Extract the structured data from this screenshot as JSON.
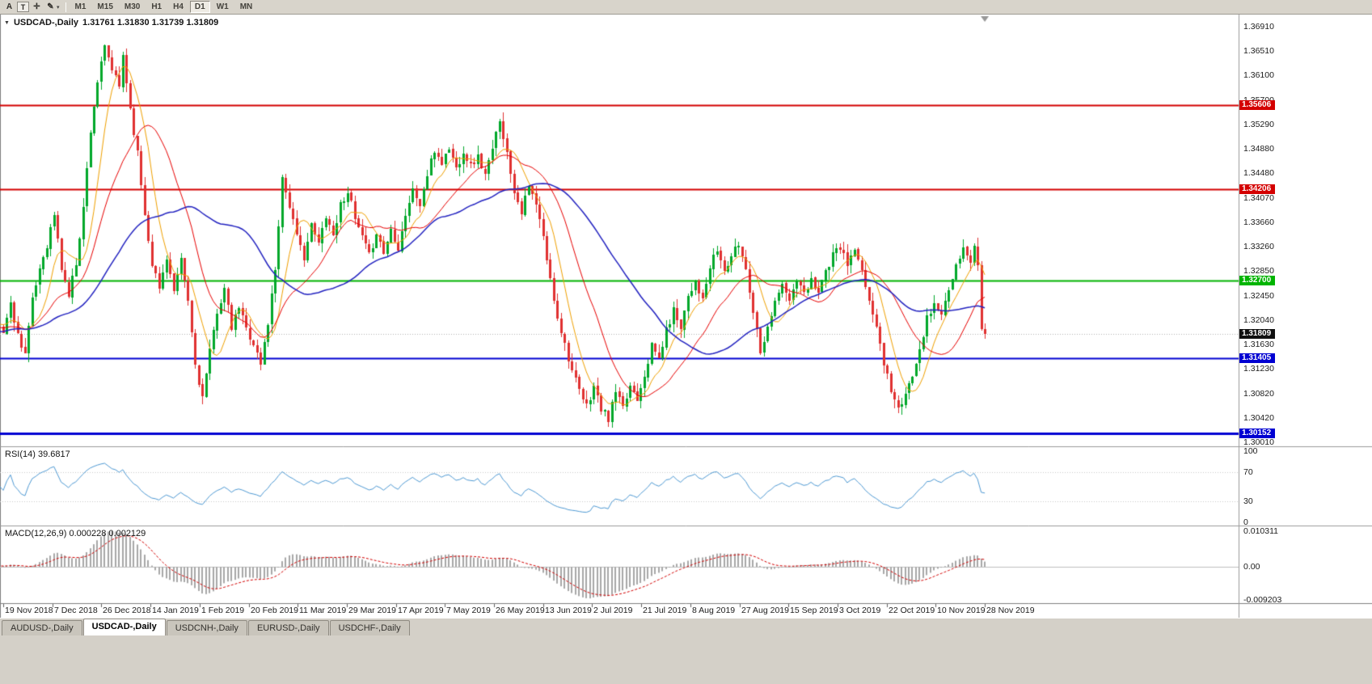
{
  "toolbar": {
    "icons": {
      "a": "A",
      "frame": "T",
      "crosshair": "✛",
      "pencil": "✎",
      "caret": "▾"
    },
    "timeframes": [
      "M1",
      "M15",
      "M30",
      "H1",
      "H4",
      "D1",
      "W1",
      "MN"
    ],
    "active_timeframe": "D1"
  },
  "chart": {
    "collapse_icon": "▼",
    "title": "USDCAD-,Daily",
    "ohlc": "1.31761 1.31830 1.31739 1.31809",
    "price_axis": [
      "1.36910",
      "1.36510",
      "1.36100",
      "1.35700",
      "1.35290",
      "1.34880",
      "1.34480",
      "1.34070",
      "1.33660",
      "1.33260",
      "1.32850",
      "1.32450",
      "1.32040",
      "1.31630",
      "1.31230",
      "1.30820",
      "1.30420",
      "1.30010"
    ],
    "hlines": [
      {
        "price": 1.35606,
        "label": "1.35606",
        "color": "#d40000",
        "width": 2
      },
      {
        "price": 1.34206,
        "label": "1.34206",
        "color": "#d40000",
        "width": 2
      },
      {
        "price": 1.327,
        "label": "1.32700",
        "color": "#00b400",
        "width": 2
      },
      {
        "price": 1.31405,
        "label": "1.31405",
        "color": "#0000d2",
        "width": 2
      },
      {
        "price": 1.30152,
        "label": "1.30152",
        "color": "#0000d2",
        "width": 3
      }
    ],
    "current_price": {
      "label": "1.31809",
      "value": 1.31809,
      "color": "#101010"
    },
    "dates": [
      "19 Nov 2018",
      "7 Dec 2018",
      "26 Dec 2018",
      "14 Jan 2019",
      "1 Feb 2019",
      "20 Feb 2019",
      "11 Mar 2019",
      "29 Mar 2019",
      "17 Apr 2019",
      "7 May 2019",
      "26 May 2019",
      "13 Jun 2019",
      "2 Jul 2019",
      "21 Jul 2019",
      "8 Aug 2019",
      "27 Aug 2019",
      "15 Sep 2019",
      "3 Oct 2019",
      "22 Oct 2019",
      "10 Nov 2019",
      "28 Nov 2019"
    ]
  },
  "rsi": {
    "label": "RSI(14) 39.6817",
    "axis": [
      "100",
      "70",
      "30",
      "0"
    ],
    "levels": [
      70,
      30
    ]
  },
  "macd": {
    "label": "MACD(12,26,9) 0.000228 0.002129",
    "axis": [
      "0.010311",
      "0.00",
      "-0.009203"
    ]
  },
  "tabs": [
    {
      "label": "AUDUSD-,Daily",
      "active": false
    },
    {
      "label": "USDCAD-,Daily",
      "active": true
    },
    {
      "label": "USDCNH-,Daily",
      "active": false
    },
    {
      "label": "EURUSD-,Daily",
      "active": false
    },
    {
      "label": "USDCHF-,Daily",
      "active": false
    }
  ],
  "chart_data": {
    "type": "candlestick",
    "symbol": "USDCAD",
    "timeframe": "Daily",
    "seed": 11,
    "candle_count": 272,
    "warmup_count": 50,
    "price_range": [
      1.2995,
      1.3705
    ],
    "warmup_waypoints": [
      [
        -50,
        1.319
      ],
      [
        -42,
        1.315
      ],
      [
        -34,
        1.3215
      ],
      [
        -26,
        1.316
      ],
      [
        -18,
        1.3205
      ],
      [
        -10,
        1.317
      ],
      [
        -4,
        1.321
      ]
    ],
    "price_waypoints": [
      [
        0,
        1.3185
      ],
      [
        2,
        1.323
      ],
      [
        4,
        1.318
      ],
      [
        6,
        1.315
      ],
      [
        8,
        1.3235
      ],
      [
        10,
        1.329
      ],
      [
        12,
        1.333
      ],
      [
        14,
        1.338
      ],
      [
        16,
        1.329
      ],
      [
        18,
        1.3245
      ],
      [
        20,
        1.33
      ],
      [
        22,
        1.339
      ],
      [
        24,
        1.352
      ],
      [
        26,
        1.36
      ],
      [
        28,
        1.3655
      ],
      [
        30,
        1.362
      ],
      [
        32,
        1.359
      ],
      [
        33,
        1.3645
      ],
      [
        35,
        1.3555
      ],
      [
        37,
        1.348
      ],
      [
        39,
        1.338
      ],
      [
        41,
        1.33
      ],
      [
        43,
        1.3255
      ],
      [
        45,
        1.331
      ],
      [
        47,
        1.325
      ],
      [
        49,
        1.33
      ],
      [
        51,
        1.3235
      ],
      [
        53,
        1.313
      ],
      [
        55,
        1.3075
      ],
      [
        57,
        1.315
      ],
      [
        59,
        1.322
      ],
      [
        61,
        1.3255
      ],
      [
        63,
        1.319
      ],
      [
        65,
        1.3225
      ],
      [
        67,
        1.319
      ],
      [
        69,
        1.3165
      ],
      [
        71,
        1.313
      ],
      [
        73,
        1.32
      ],
      [
        75,
        1.329
      ],
      [
        77,
        1.344
      ],
      [
        79,
        1.3395
      ],
      [
        81,
        1.334
      ],
      [
        83,
        1.331
      ],
      [
        85,
        1.336
      ],
      [
        87,
        1.333
      ],
      [
        89,
        1.338
      ],
      [
        91,
        1.3345
      ],
      [
        93,
        1.3395
      ],
      [
        95,
        1.342
      ],
      [
        97,
        1.337
      ],
      [
        99,
        1.334
      ],
      [
        101,
        1.331
      ],
      [
        103,
        1.335
      ],
      [
        105,
        1.3315
      ],
      [
        107,
        1.3355
      ],
      [
        109,
        1.3325
      ],
      [
        111,
        1.338
      ],
      [
        113,
        1.342
      ],
      [
        115,
        1.3395
      ],
      [
        117,
        1.3445
      ],
      [
        119,
        1.3485
      ],
      [
        121,
        1.3465
      ],
      [
        123,
        1.349
      ],
      [
        125,
        1.3455
      ],
      [
        127,
        1.3485
      ],
      [
        129,
        1.346
      ],
      [
        131,
        1.3475
      ],
      [
        133,
        1.3445
      ],
      [
        135,
        1.3485
      ],
      [
        137,
        1.354
      ],
      [
        139,
        1.348
      ],
      [
        141,
        1.342
      ],
      [
        143,
        1.3385
      ],
      [
        145,
        1.3425
      ],
      [
        147,
        1.3395
      ],
      [
        149,
        1.334
      ],
      [
        151,
        1.327
      ],
      [
        153,
        1.321
      ],
      [
        155,
        1.3165
      ],
      [
        157,
        1.312
      ],
      [
        159,
        1.3085
      ],
      [
        161,
        1.306
      ],
      [
        163,
        1.3095
      ],
      [
        165,
        1.3055
      ],
      [
        167,
        1.304
      ],
      [
        169,
        1.3085
      ],
      [
        171,
        1.3055
      ],
      [
        173,
        1.3095
      ],
      [
        175,
        1.3075
      ],
      [
        177,
        1.3115
      ],
      [
        179,
        1.316
      ],
      [
        181,
        1.314
      ],
      [
        183,
        1.3185
      ],
      [
        185,
        1.322
      ],
      [
        187,
        1.3195
      ],
      [
        189,
        1.3245
      ],
      [
        191,
        1.327
      ],
      [
        193,
        1.3235
      ],
      [
        195,
        1.329
      ],
      [
        197,
        1.332
      ],
      [
        199,
        1.3285
      ],
      [
        201,
        1.331
      ],
      [
        203,
        1.333
      ],
      [
        205,
        1.329
      ],
      [
        207,
        1.322
      ],
      [
        209,
        1.3155
      ],
      [
        211,
        1.319
      ],
      [
        213,
        1.324
      ],
      [
        215,
        1.326
      ],
      [
        217,
        1.3235
      ],
      [
        219,
        1.327
      ],
      [
        221,
        1.3245
      ],
      [
        223,
        1.327
      ],
      [
        225,
        1.3255
      ],
      [
        227,
        1.3285
      ],
      [
        229,
        1.331
      ],
      [
        231,
        1.3325
      ],
      [
        233,
        1.3295
      ],
      [
        235,
        1.332
      ],
      [
        237,
        1.328
      ],
      [
        239,
        1.324
      ],
      [
        241,
        1.319
      ],
      [
        243,
        1.3135
      ],
      [
        245,
        1.309
      ],
      [
        247,
        1.3055
      ],
      [
        249,
        1.3075
      ],
      [
        251,
        1.3115
      ],
      [
        253,
        1.316
      ],
      [
        255,
        1.3205
      ],
      [
        257,
        1.323
      ],
      [
        259,
        1.3215
      ],
      [
        261,
        1.325
      ],
      [
        263,
        1.329
      ],
      [
        265,
        1.332
      ],
      [
        267,
        1.33
      ],
      [
        268,
        1.333
      ],
      [
        269,
        1.329
      ],
      [
        270,
        1.3195
      ],
      [
        271,
        1.31809
      ]
    ],
    "moving_averages": [
      {
        "type": "sma",
        "period": 8,
        "color": "#f0a000",
        "width": 1
      },
      {
        "type": "sma",
        "period": 20,
        "color": "#e80000",
        "width": 1
      },
      {
        "type": "sma",
        "period": 45,
        "color": "#2222c0",
        "width": 1.5
      }
    ],
    "colors": {
      "background": "#ffffff",
      "bull": "#00a82a",
      "bear": "#e03030",
      "rsi_line": "#4f9ad4",
      "macd_histogram": "#a8a8a8",
      "macd_signal": "#d40000",
      "bid_line": "#b4b4b4"
    }
  }
}
